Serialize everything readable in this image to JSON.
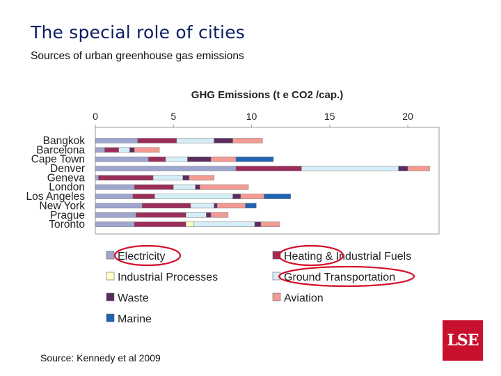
{
  "slide": {
    "title": "The special role of cities",
    "subtitle": "Sources of urban greenhouse gas emissions",
    "source": "Source: Kennedy et al 2009",
    "logo_text": "LSE",
    "highlight_color": "#d3102c"
  },
  "chart_data": {
    "type": "bar",
    "orientation": "horizontal",
    "stacked": true,
    "title": "GHG Emissions (t e CO2 /cap.)",
    "xlabel": "",
    "ylabel": "",
    "xlim": [
      0,
      22
    ],
    "xticks": [
      0,
      5,
      10,
      15,
      20
    ],
    "categories": [
      "Bangkok",
      "Barcelona",
      "Cape Town",
      "Denver",
      "Geneva",
      "London",
      "Los Angeles",
      "New York",
      "Prague",
      "Toronto"
    ],
    "series": [
      {
        "name": "Electricity",
        "color": "#9ea6cf",
        "values": [
          2.7,
          0.6,
          3.4,
          9.0,
          0.2,
          2.5,
          2.4,
          3.0,
          2.6,
          2.5
        ]
      },
      {
        "name": "Heating & Industrial Fuels",
        "color": "#9b2d59",
        "values": [
          2.5,
          0.9,
          1.1,
          4.2,
          3.5,
          2.5,
          1.4,
          3.1,
          3.2,
          3.3
        ]
      },
      {
        "name": "Industrial Processes",
        "color": "#ffffc8",
        "values": [
          0.0,
          0.0,
          0.0,
          0.0,
          0.0,
          0.0,
          0.0,
          0.0,
          0.0,
          0.5
        ]
      },
      {
        "name": "Ground Transportation",
        "color": "#d5edf6",
        "values": [
          2.4,
          0.7,
          1.4,
          6.2,
          1.9,
          1.4,
          5.0,
          1.5,
          1.3,
          3.9
        ]
      },
      {
        "name": "Waste",
        "color": "#5b2c5f",
        "values": [
          1.2,
          0.3,
          1.5,
          0.6,
          0.4,
          0.3,
          0.5,
          0.2,
          0.3,
          0.4
        ]
      },
      {
        "name": "Aviation",
        "color": "#f39a92",
        "values": [
          1.9,
          1.6,
          1.6,
          1.4,
          1.6,
          3.1,
          1.5,
          1.8,
          1.1,
          1.2
        ]
      },
      {
        "name": "Marine",
        "color": "#1f63b3",
        "values": [
          0.0,
          0.0,
          2.4,
          0.0,
          0.0,
          0.0,
          1.7,
          0.7,
          0.0,
          0.0
        ]
      }
    ],
    "legend_order": [
      "Electricity",
      "Heating & Industrial Fuels",
      "Industrial Processes",
      "Ground Transportation",
      "Waste",
      "Aviation",
      "Marine"
    ],
    "legend_position": "bottom",
    "circled_legend_items": [
      "Electricity",
      "Heating & Industrial Fuels",
      "Ground Transportation"
    ],
    "grid": false
  }
}
